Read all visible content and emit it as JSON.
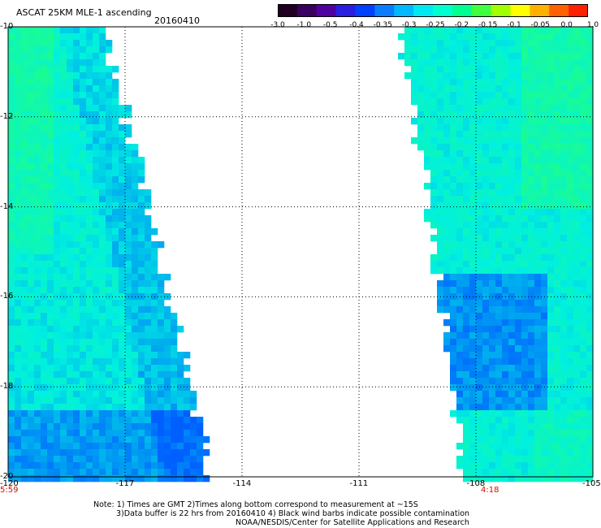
{
  "title": "ASCAT 25KM MLE-1 ascending",
  "date": "20160410",
  "colorbar": {
    "labels": [
      "-3.0",
      "-1.0",
      "-0.5",
      "-0.4",
      "-0.35",
      "-0.3",
      "-0.25",
      "-0.2",
      "-0.15",
      "-0.1",
      "-0.05",
      "0.0",
      "1.0"
    ],
    "colors": [
      "#200020",
      "#3a0060",
      "#5000a0",
      "#2a1ee0",
      "#0040ff",
      "#0a7cff",
      "#00b8ff",
      "#00e8f0",
      "#00ffd0",
      "#00ff90",
      "#40ff40",
      "#a0ff00",
      "#ffff00",
      "#ffb000",
      "#ff6000",
      "#ff2000"
    ]
  },
  "map": {
    "lon_min": -120,
    "lon_max": -105,
    "lat_min": -20,
    "lat_max": -10,
    "lon_ticks": [
      "-120",
      "-117",
      "-114",
      "-111",
      "-108",
      "-105"
    ],
    "lat_ticks": [
      "-10",
      "-12",
      "-14",
      "-16",
      "-18",
      "-20"
    ],
    "swaths": [
      {
        "name": "west",
        "lon_west": -120,
        "lon_east_top": -117.5,
        "lon_east_bottom": -114.8,
        "time": "5:59"
      },
      {
        "name": "east",
        "lon_west_top": -109.9,
        "lon_west_bottom": -108.3,
        "lon_east": -105,
        "time": "4:18"
      }
    ],
    "colors": {
      "swath_main": "#00f0e0",
      "swath_low": "#0060ff",
      "swath_high": "#20ff80"
    }
  },
  "notes": {
    "line1": "Note: 1) Times are GMT 2)Times along bottom correspond to measurement at ~15S",
    "line2": "3)Data buffer is 22 hrs from 20160410 4) Black wind barbs indicate possible contamination",
    "line3": "NOAA/NESDIS/Center for Satellite Applications and Research"
  }
}
